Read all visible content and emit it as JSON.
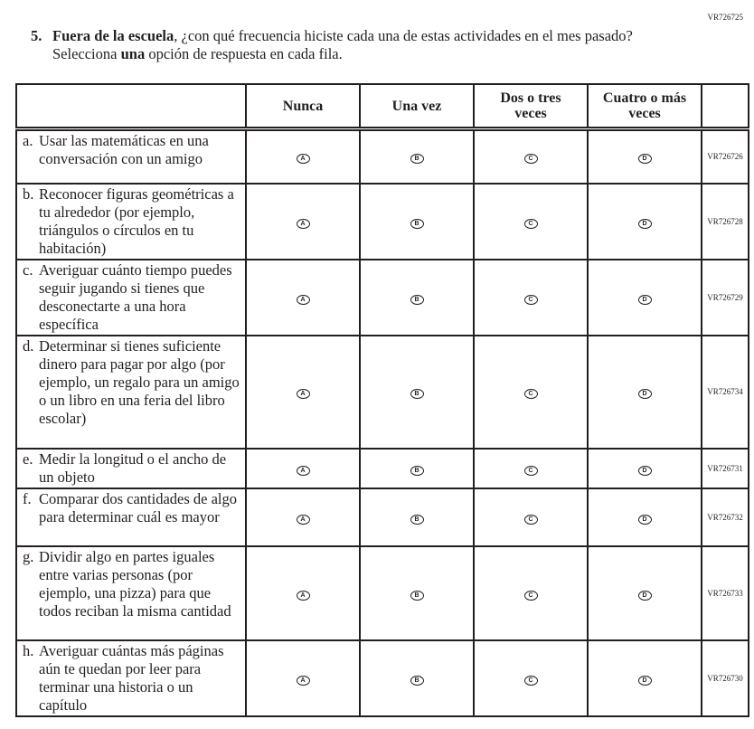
{
  "top_code": "VR726725",
  "question": {
    "number": "5.",
    "bold_lead": "Fuera de la escuela",
    "text": ", ¿con qué frecuencia hiciste cada una de estas actividades en el mes pasado? Selecciona ",
    "bold_una": "una",
    "text_end": " opción de respuesta en cada fila."
  },
  "columns": [
    "Nunca",
    "Una vez",
    "Dos o tres veces",
    "Cuatro o más veces"
  ],
  "bubbles": [
    "A",
    "B",
    "C",
    "D"
  ],
  "rows": [
    {
      "letter": "a.",
      "text": "Usar las matemáticas en una conversación con un amigo",
      "code": "VR726726",
      "h": 60
    },
    {
      "letter": "b.",
      "text": "Reconocer figuras geométricas a tu alrededor (por ejemplo, triángulos o círculos en tu habitación)",
      "code": "VR726728",
      "h": 84
    },
    {
      "letter": "c.",
      "text": "Averiguar cuánto tiempo puedes seguir jugando si tienes que desconectarte a una hora específica",
      "code": "VR726729",
      "h": 84
    },
    {
      "letter": "d.",
      "text": "Determinar si tienes suficiente dinero para pagar por algo (por ejemplo, un regalo para un amigo o un libro en una feria del libro escolar)",
      "code": "VR726734",
      "h": 125
    },
    {
      "letter": "e.",
      "text": "Medir la longitud o el ancho de un objeto",
      "code": "VR726731",
      "h": 44
    },
    {
      "letter": "f.",
      "text": "Comparar dos cantidades de algo para determinar cuál es mayor",
      "code": "VR726732",
      "h": 64
    },
    {
      "letter": "g.",
      "text": "Dividir algo en partes iguales entre varias personas (por ejemplo, una pizza) para que todos reciban la misma cantidad",
      "code": "VR726733",
      "h": 104
    },
    {
      "letter": "h.",
      "text": "Averiguar cuántas más páginas aún te quedan por leer para terminar una historia o un capítulo",
      "code": "VR726730",
      "h": 83
    }
  ]
}
